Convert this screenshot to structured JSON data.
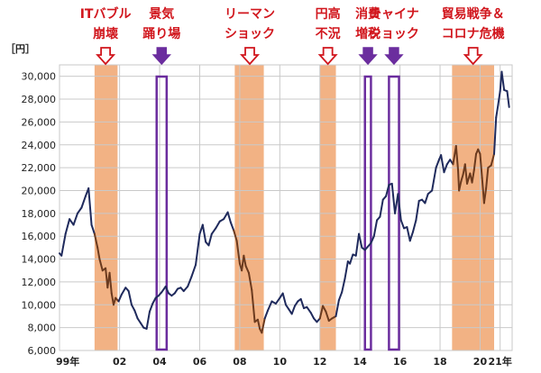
{
  "chart_data": {
    "type": "line",
    "y_unit": "［円］",
    "ylim": [
      6000,
      31000
    ],
    "y_ticks": [
      {
        "v": 6000,
        "label": "6,000"
      },
      {
        "v": 8000,
        "label": "8,000"
      },
      {
        "v": 10000,
        "label": "10,000"
      },
      {
        "v": 12000,
        "label": "12,000"
      },
      {
        "v": 14000,
        "label": "14,000"
      },
      {
        "v": 16000,
        "label": "16,000"
      },
      {
        "v": 18000,
        "label": "18,000"
      },
      {
        "v": 20000,
        "label": "20,000"
      },
      {
        "v": 22000,
        "label": "22,000"
      },
      {
        "v": 24000,
        "label": "24,000"
      },
      {
        "v": 26000,
        "label": "26,000"
      },
      {
        "v": 28000,
        "label": "28,000"
      },
      {
        "v": 30000,
        "label": "30,000"
      }
    ],
    "xlim": [
      1999.0,
      2021.6
    ],
    "x_ticks": [
      {
        "v": 1999.0,
        "label": "99年"
      },
      {
        "v": 2002.0,
        "label": "02"
      },
      {
        "v": 2004.0,
        "label": "04"
      },
      {
        "v": 2006.0,
        "label": "06"
      },
      {
        "v": 2008.0,
        "label": "08"
      },
      {
        "v": 2010.0,
        "label": "10"
      },
      {
        "v": 2012.0,
        "label": "12"
      },
      {
        "v": 2014.0,
        "label": "14"
      },
      {
        "v": 2016.0,
        "label": "16"
      },
      {
        "v": 2018.0,
        "label": "18"
      },
      {
        "v": 2020.0,
        "label": "20"
      },
      {
        "v": 2021.0,
        "label": "21年"
      }
    ],
    "grid": true,
    "colors": {
      "line": "#1f2a5c",
      "down_line": "#6b3a1e",
      "shade": "#f0a56e",
      "box": "#6b2d9e",
      "event": "#d1161d"
    },
    "points": [
      [
        1999.0,
        14500
      ],
      [
        1999.1,
        14300
      ],
      [
        1999.3,
        16200
      ],
      [
        1999.5,
        17500
      ],
      [
        1999.7,
        17000
      ],
      [
        1999.9,
        18000
      ],
      [
        2000.1,
        18500
      ],
      [
        2000.3,
        19500
      ],
      [
        2000.45,
        20200
      ],
      [
        2000.6,
        17000
      ],
      [
        2000.75,
        16200
      ],
      [
        2000.9,
        15000
      ],
      [
        2001.0,
        14000
      ],
      [
        2001.15,
        13000
      ],
      [
        2001.3,
        13200
      ],
      [
        2001.4,
        11500
      ],
      [
        2001.5,
        12800
      ],
      [
        2001.6,
        11000
      ],
      [
        2001.7,
        10000
      ],
      [
        2001.8,
        10600
      ],
      [
        2001.95,
        10300
      ],
      [
        2002.1,
        10900
      ],
      [
        2002.3,
        11500
      ],
      [
        2002.45,
        11200
      ],
      [
        2002.6,
        10000
      ],
      [
        2002.75,
        9500
      ],
      [
        2002.9,
        8800
      ],
      [
        2003.05,
        8400
      ],
      [
        2003.2,
        8000
      ],
      [
        2003.35,
        7900
      ],
      [
        2003.5,
        9400
      ],
      [
        2003.65,
        10100
      ],
      [
        2003.8,
        10600
      ],
      [
        2003.95,
        10800
      ],
      [
        2004.1,
        11100
      ],
      [
        2004.3,
        11600
      ],
      [
        2004.45,
        11000
      ],
      [
        2004.6,
        10800
      ],
      [
        2004.75,
        11000
      ],
      [
        2004.9,
        11400
      ],
      [
        2005.05,
        11500
      ],
      [
        2005.2,
        11200
      ],
      [
        2005.4,
        11600
      ],
      [
        2005.6,
        12500
      ],
      [
        2005.8,
        13500
      ],
      [
        2006.0,
        16200
      ],
      [
        2006.15,
        17000
      ],
      [
        2006.3,
        15500
      ],
      [
        2006.45,
        15200
      ],
      [
        2006.6,
        16200
      ],
      [
        2006.8,
        16700
      ],
      [
        2007.0,
        17300
      ],
      [
        2007.2,
        17500
      ],
      [
        2007.4,
        18100
      ],
      [
        2007.55,
        17200
      ],
      [
        2007.7,
        16500
      ],
      [
        2007.85,
        15600
      ],
      [
        2008.0,
        13600
      ],
      [
        2008.1,
        13000
      ],
      [
        2008.2,
        14300
      ],
      [
        2008.3,
        13400
      ],
      [
        2008.45,
        12800
      ],
      [
        2008.6,
        11300
      ],
      [
        2008.75,
        8500
      ],
      [
        2008.9,
        8700
      ],
      [
        2009.0,
        7900
      ],
      [
        2009.1,
        7550
      ],
      [
        2009.25,
        8800
      ],
      [
        2009.4,
        9500
      ],
      [
        2009.6,
        10300
      ],
      [
        2009.8,
        10100
      ],
      [
        2010.0,
        10600
      ],
      [
        2010.15,
        11000
      ],
      [
        2010.3,
        10000
      ],
      [
        2010.45,
        9600
      ],
      [
        2010.6,
        9200
      ],
      [
        2010.75,
        9900
      ],
      [
        2010.9,
        10300
      ],
      [
        2011.05,
        10500
      ],
      [
        2011.2,
        9700
      ],
      [
        2011.35,
        9800
      ],
      [
        2011.55,
        9300
      ],
      [
        2011.7,
        8800
      ],
      [
        2011.85,
        8500
      ],
      [
        2012.0,
        8800
      ],
      [
        2012.15,
        9900
      ],
      [
        2012.3,
        9400
      ],
      [
        2012.45,
        8600
      ],
      [
        2012.6,
        8800
      ],
      [
        2012.8,
        9000
      ],
      [
        2012.95,
        10400
      ],
      [
        2013.1,
        11100
      ],
      [
        2013.25,
        12300
      ],
      [
        2013.4,
        13800
      ],
      [
        2013.5,
        13600
      ],
      [
        2013.65,
        14400
      ],
      [
        2013.8,
        14300
      ],
      [
        2013.95,
        16200
      ],
      [
        2014.1,
        15000
      ],
      [
        2014.25,
        14800
      ],
      [
        2014.4,
        15100
      ],
      [
        2014.55,
        15400
      ],
      [
        2014.7,
        16000
      ],
      [
        2014.85,
        17400
      ],
      [
        2015.0,
        17700
      ],
      [
        2015.15,
        19200
      ],
      [
        2015.3,
        19500
      ],
      [
        2015.45,
        20500
      ],
      [
        2015.6,
        20600
      ],
      [
        2015.75,
        18000
      ],
      [
        2015.9,
        19700
      ],
      [
        2016.05,
        17400
      ],
      [
        2016.2,
        16700
      ],
      [
        2016.35,
        16800
      ],
      [
        2016.5,
        15600
      ],
      [
        2016.65,
        16400
      ],
      [
        2016.8,
        17400
      ],
      [
        2016.95,
        19100
      ],
      [
        2017.1,
        19200
      ],
      [
        2017.25,
        18900
      ],
      [
        2017.4,
        19700
      ],
      [
        2017.6,
        20000
      ],
      [
        2017.8,
        22000
      ],
      [
        2017.95,
        22700
      ],
      [
        2018.05,
        23100
      ],
      [
        2018.2,
        21600
      ],
      [
        2018.35,
        22300
      ],
      [
        2018.5,
        22700
      ],
      [
        2018.65,
        22300
      ],
      [
        2018.8,
        23900
      ],
      [
        2018.9,
        21800
      ],
      [
        2018.95,
        20000
      ],
      [
        2019.05,
        20800
      ],
      [
        2019.15,
        21400
      ],
      [
        2019.25,
        22300
      ],
      [
        2019.35,
        20600
      ],
      [
        2019.5,
        21500
      ],
      [
        2019.6,
        20700
      ],
      [
        2019.7,
        21800
      ],
      [
        2019.8,
        23200
      ],
      [
        2019.9,
        23600
      ],
      [
        2020.0,
        23200
      ],
      [
        2020.1,
        21100
      ],
      [
        2020.2,
        18900
      ],
      [
        2020.3,
        20200
      ],
      [
        2020.4,
        22000
      ],
      [
        2020.55,
        22200
      ],
      [
        2020.7,
        23200
      ],
      [
        2020.8,
        26400
      ],
      [
        2020.9,
        27500
      ],
      [
        2021.0,
        28700
      ],
      [
        2021.08,
        30400
      ],
      [
        2021.2,
        28800
      ],
      [
        2021.35,
        28700
      ],
      [
        2021.45,
        27300
      ]
    ],
    "shaded_ranges": [
      [
        2000.75,
        2001.9
      ],
      [
        2007.75,
        2009.2
      ],
      [
        2012.0,
        2012.8
      ],
      [
        2018.6,
        2020.7
      ]
    ],
    "boxed_ranges": [
      [
        2003.85,
        2004.35
      ],
      [
        2014.25,
        2014.55
      ],
      [
        2015.45,
        2015.95
      ]
    ],
    "events": [
      {
        "id": "it-bubble",
        "lines": [
          "ITバブル",
          "崩壊"
        ],
        "arrow": "outline",
        "x": 2001.3
      },
      {
        "id": "keiki",
        "lines": [
          "景気",
          "踊り場"
        ],
        "arrow": "solid",
        "x": 2004.1
      },
      {
        "id": "lehman",
        "lines": [
          "リーマン",
          "ショック"
        ],
        "arrow": "outline",
        "x": 2008.5
      },
      {
        "id": "endaka",
        "lines": [
          "円高",
          "不況"
        ],
        "arrow": "outline",
        "x": 2012.4
      },
      {
        "id": "shohi",
        "lines": [
          "消費",
          "増税"
        ],
        "arrow": "solid",
        "x": 2014.4
      },
      {
        "id": "china",
        "lines": [
          "チャイナ",
          "ショック"
        ],
        "arrow": "solid",
        "x": 2015.7
      },
      {
        "id": "trade-war",
        "lines": [
          "貿易戦争＆",
          "コロナ危機"
        ],
        "arrow": "outline",
        "x": 2019.65
      }
    ]
  }
}
